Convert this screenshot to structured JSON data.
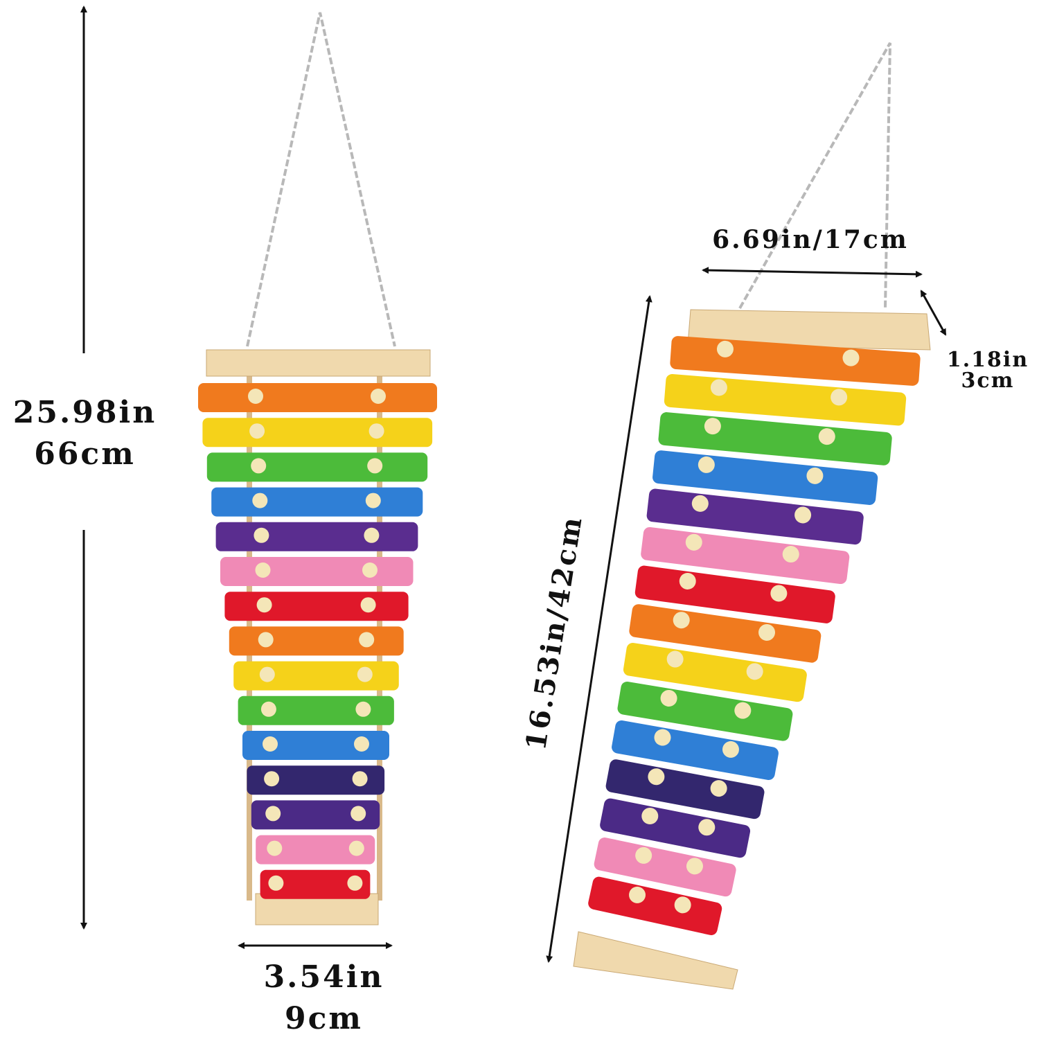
{
  "labels": {
    "left_height_in": "25.98in",
    "left_height_cm": "66cm",
    "left_width_in": "3.54in",
    "left_width_cm": "9cm",
    "right_width": "6.69in/17cm",
    "right_depth_in": "1.18in",
    "right_depth_cm": "3cm",
    "right_length": "16.53in/42cm"
  },
  "bar_colors": [
    "#f07a1e",
    "#f5d21a",
    "#4cbb3a",
    "#2f7fd6",
    "#5a2d8f",
    "#f08ab6",
    "#e0182a",
    "#f07a1e",
    "#f5d21a",
    "#4cbb3a",
    "#2f7fd6",
    "#33276e",
    "#4b2a86",
    "#f08ab6",
    "#e0182a"
  ],
  "colors": {
    "wood": "#f0d9ad",
    "peg": "#f4e6b8",
    "chain": "#b8b8b8",
    "arrow": "#111111"
  }
}
